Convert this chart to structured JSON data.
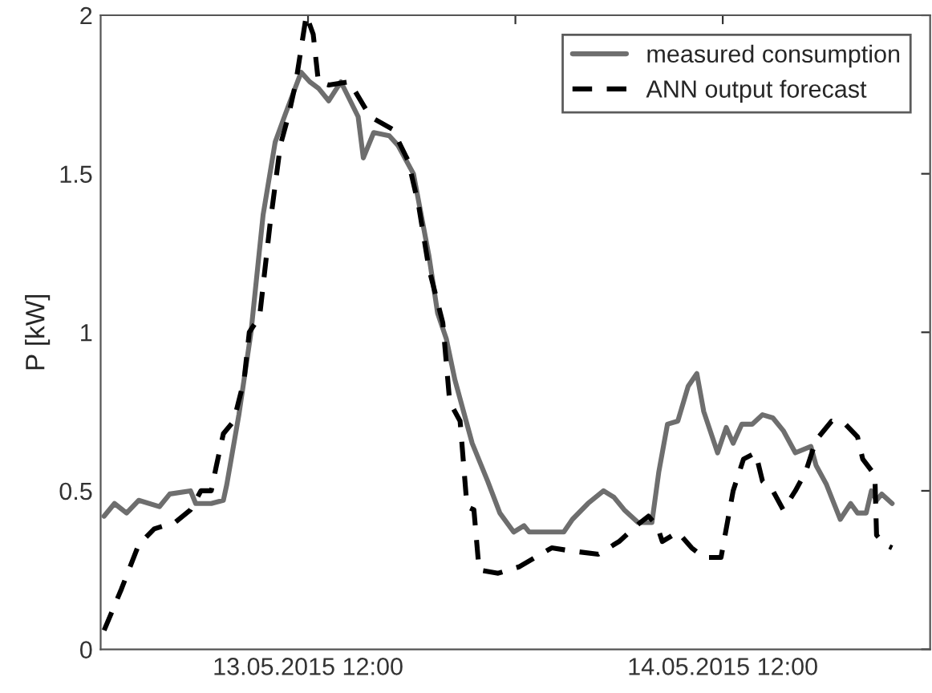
{
  "chart_data": {
    "type": "line",
    "ylabel": "P [kW]",
    "xlim": [
      "2015-05-13T00:00",
      "2015-05-15T00:00"
    ],
    "xticks": [
      {
        "value": "2015-05-13T12:00",
        "label": "13.05.2015 12:00"
      },
      {
        "value": "2015-05-14T00:00",
        "label": null
      },
      {
        "value": "2015-05-14T12:00",
        "label": "14.05.2015 12:00"
      }
    ],
    "ylim": [
      0,
      2
    ],
    "yticks": [
      0,
      0.5,
      1,
      1.5,
      2
    ],
    "grid": false,
    "legend": "top right",
    "series": [
      {
        "name": "measured consumption",
        "color": "#6e6e6e",
        "line_style": "solid",
        "x": [
          "2015-05-13T00:12",
          "2015-05-13T00:48",
          "2015-05-13T01:30",
          "2015-05-13T02:12",
          "2015-05-13T03:24",
          "2015-05-13T04:00",
          "2015-05-13T05:12",
          "2015-05-13T05:30",
          "2015-05-13T06:24",
          "2015-05-13T07:06",
          "2015-05-13T07:18",
          "2015-05-13T08:00",
          "2015-05-13T08:42",
          "2015-05-13T09:24",
          "2015-05-13T10:06",
          "2015-05-13T10:42",
          "2015-05-13T11:36",
          "2015-05-13T12:06",
          "2015-05-13T12:36",
          "2015-05-13T13:12",
          "2015-05-13T13:54",
          "2015-05-13T14:54",
          "2015-05-13T15:12",
          "2015-05-13T15:48",
          "2015-05-13T16:42",
          "2015-05-13T17:12",
          "2015-05-13T18:06",
          "2015-05-13T19:00",
          "2015-05-13T19:30",
          "2015-05-13T20:00",
          "2015-05-13T20:30",
          "2015-05-13T21:00",
          "2015-05-13T21:30",
          "2015-05-13T22:24",
          "2015-05-13T23:06",
          "2015-05-13T23:54",
          "2015-05-14T00:30",
          "2015-05-14T00:48",
          "2015-05-14T02:48",
          "2015-05-14T03:18",
          "2015-05-14T04:12",
          "2015-05-14T05:06",
          "2015-05-14T05:42",
          "2015-05-14T06:18",
          "2015-05-14T07:06",
          "2015-05-14T07:54",
          "2015-05-14T08:18",
          "2015-05-14T08:48",
          "2015-05-14T09:24",
          "2015-05-14T10:00",
          "2015-05-14T10:30",
          "2015-05-14T10:54",
          "2015-05-14T11:42",
          "2015-05-14T12:12",
          "2015-05-14T12:36",
          "2015-05-14T13:06",
          "2015-05-14T13:42",
          "2015-05-14T14:18",
          "2015-05-14T14:54",
          "2015-05-14T15:30",
          "2015-05-14T16:12",
          "2015-05-14T17:06",
          "2015-05-14T17:24",
          "2015-05-14T18:00",
          "2015-05-14T18:48",
          "2015-05-14T19:24",
          "2015-05-14T19:48",
          "2015-05-14T20:18",
          "2015-05-14T20:36",
          "2015-05-14T20:54",
          "2015-05-14T21:12",
          "2015-05-14T21:48"
        ],
        "values": [
          0.42,
          0.46,
          0.43,
          0.47,
          0.45,
          0.49,
          0.5,
          0.46,
          0.46,
          0.47,
          0.52,
          0.74,
          1.0,
          1.37,
          1.6,
          1.69,
          1.82,
          1.79,
          1.77,
          1.73,
          1.79,
          1.68,
          1.55,
          1.63,
          1.62,
          1.59,
          1.5,
          1.24,
          1.06,
          0.98,
          0.85,
          0.75,
          0.65,
          0.53,
          0.43,
          0.37,
          0.39,
          0.37,
          0.37,
          0.41,
          0.46,
          0.5,
          0.48,
          0.44,
          0.4,
          0.4,
          0.56,
          0.71,
          0.72,
          0.83,
          0.87,
          0.75,
          0.62,
          0.7,
          0.65,
          0.71,
          0.71,
          0.74,
          0.73,
          0.69,
          0.62,
          0.64,
          0.58,
          0.52,
          0.41,
          0.46,
          0.43,
          0.43,
          0.5,
          0.47,
          0.49,
          0.46
        ]
      },
      {
        "name": "ANN output forecast",
        "color": "#000000",
        "line_style": "dashed",
        "x": [
          "2015-05-13T00:12",
          "2015-05-13T01:12",
          "2015-05-13T02:12",
          "2015-05-13T03:06",
          "2015-05-13T04:18",
          "2015-05-13T05:12",
          "2015-05-13T05:48",
          "2015-05-13T06:24",
          "2015-05-13T06:42",
          "2015-05-13T07:06",
          "2015-05-13T07:42",
          "2015-05-13T08:18",
          "2015-05-13T08:36",
          "2015-05-13T09:12",
          "2015-05-13T09:48",
          "2015-05-13T10:24",
          "2015-05-13T10:54",
          "2015-05-13T11:18",
          "2015-05-13T11:54",
          "2015-05-13T12:18",
          "2015-05-13T12:36",
          "2015-05-13T13:12",
          "2015-05-13T14:24",
          "2015-05-13T15:36",
          "2015-05-13T16:54",
          "2015-05-13T17:48",
          "2015-05-13T18:24",
          "2015-05-13T19:00",
          "2015-05-13T19:48",
          "2015-05-13T20:12",
          "2015-05-13T20:48",
          "2015-05-13T21:12",
          "2015-05-13T21:36",
          "2015-05-13T21:54",
          "2015-05-13T23:00",
          "2015-05-14T00:12",
          "2015-05-14T02:06",
          "2015-05-14T03:18",
          "2015-05-14T04:48",
          "2015-05-14T06:00",
          "2015-05-14T07:00",
          "2015-05-14T07:42",
          "2015-05-14T08:12",
          "2015-05-14T08:30",
          "2015-05-14T09:24",
          "2015-05-14T10:12",
          "2015-05-14T10:54",
          "2015-05-14T11:54",
          "2015-05-14T12:36",
          "2015-05-14T13:12",
          "2015-05-14T13:54",
          "2015-05-14T14:18",
          "2015-05-14T14:54",
          "2015-05-14T15:30",
          "2015-05-14T16:12",
          "2015-05-14T16:48",
          "2015-05-14T17:24",
          "2015-05-14T18:18",
          "2015-05-14T19:06",
          "2015-05-14T19:48",
          "2015-05-14T20:06",
          "2015-05-14T20:48",
          "2015-05-14T20:54",
          "2015-05-14T21:24",
          "2015-05-14T21:48"
        ],
        "values": [
          0.06,
          0.19,
          0.33,
          0.38,
          0.4,
          0.44,
          0.5,
          0.5,
          0.58,
          0.68,
          0.72,
          0.85,
          1.0,
          1.05,
          1.34,
          1.59,
          1.69,
          1.79,
          2.0,
          1.94,
          1.79,
          1.78,
          1.79,
          1.68,
          1.64,
          1.54,
          1.4,
          1.2,
          1.03,
          0.78,
          0.72,
          0.45,
          0.44,
          0.25,
          0.24,
          0.26,
          0.32,
          0.31,
          0.3,
          0.34,
          0.39,
          0.42,
          0.39,
          0.34,
          0.37,
          0.32,
          0.29,
          0.29,
          0.5,
          0.6,
          0.62,
          0.53,
          0.5,
          0.44,
          0.5,
          0.56,
          0.66,
          0.72,
          0.71,
          0.67,
          0.6,
          0.55,
          0.36,
          0.33,
          0.32
        ]
      }
    ]
  }
}
